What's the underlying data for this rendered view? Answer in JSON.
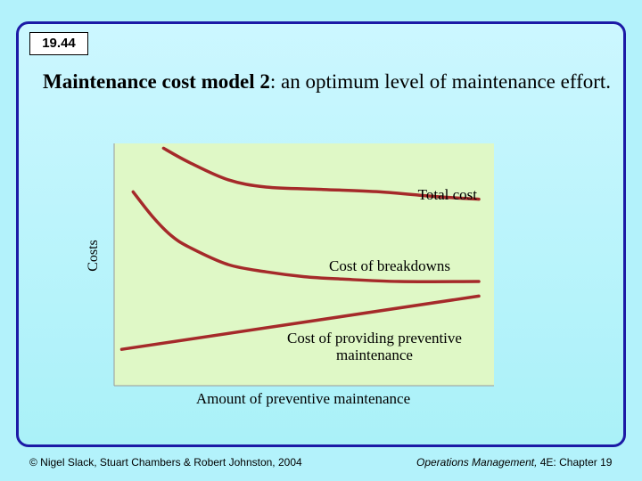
{
  "slide": {
    "number": "19.44",
    "title_bold": "Maintenance cost model 2",
    "title_rest": ": an optimum level of maintenance effort."
  },
  "chart_data": {
    "type": "line",
    "xlabel": "Amount of preventive maintenance",
    "ylabel": "Costs",
    "series": [
      {
        "name": "Total cost",
        "x": [
          0.13,
          0.2,
          0.3,
          0.4,
          0.55,
          0.7,
          0.85,
          0.96
        ],
        "y": [
          0.98,
          0.92,
          0.85,
          0.82,
          0.81,
          0.8,
          0.78,
          0.77
        ],
        "color": "#a52a2a"
      },
      {
        "name": "Cost of breakdowns",
        "x": [
          0.05,
          0.1,
          0.15,
          0.2,
          0.3,
          0.4,
          0.5,
          0.6,
          0.75,
          0.96
        ],
        "y": [
          0.8,
          0.7,
          0.62,
          0.57,
          0.5,
          0.47,
          0.45,
          0.44,
          0.43,
          0.43
        ],
        "color": "#a52a2a"
      },
      {
        "name": "Cost of providing preventive maintenance",
        "x": [
          0.02,
          0.96
        ],
        "y": [
          0.15,
          0.37
        ],
        "color": "#a52a2a"
      }
    ],
    "labels": {
      "total": "Total cost",
      "breakdowns": "Cost of breakdowns",
      "preventive_1": "Cost of providing preventive",
      "preventive_2": "maintenance"
    },
    "grid": false,
    "plot_bg": "#dff8c6"
  },
  "footer": {
    "left": "© Nigel Slack, Stuart Chambers & Robert Johnston, 2004",
    "right_italic": "Operations Management,",
    "right_rest": " 4E: Chapter 19"
  }
}
